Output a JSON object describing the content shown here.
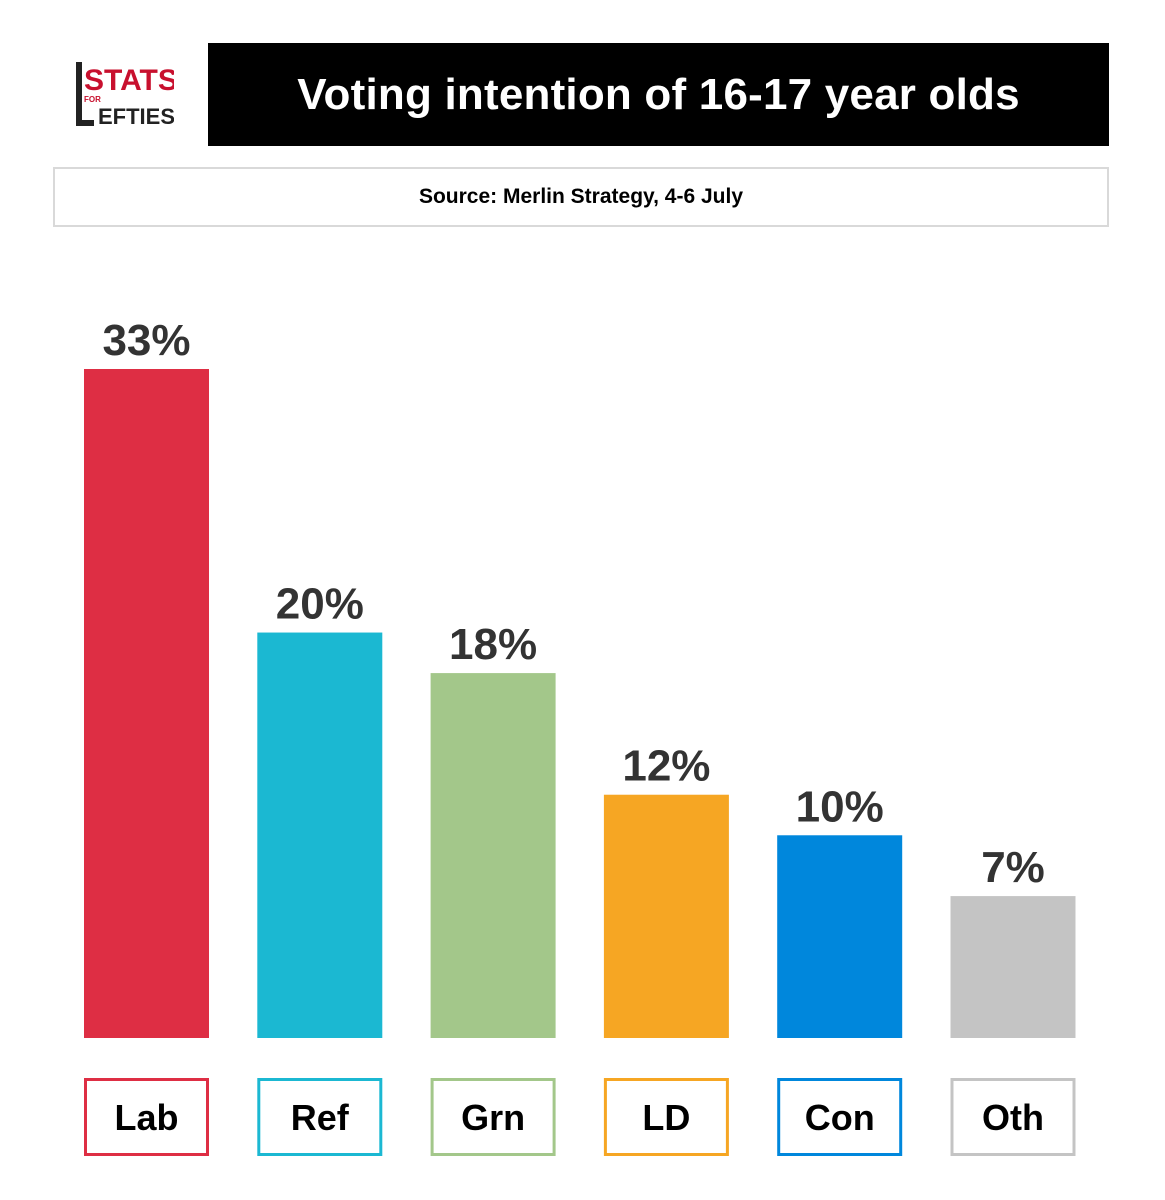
{
  "branding": {
    "logo_text_top": "STATS",
    "logo_text_for": "FOR",
    "logo_text_bottom": "EFTIES",
    "logo_letter": "L"
  },
  "header": {
    "title": "Voting intention of 16-17 year olds",
    "source": "Source: Merlin Strategy, 4-6 July"
  },
  "chart_data": {
    "type": "bar",
    "categories": [
      "Lab",
      "Ref",
      "Grn",
      "LD",
      "Con",
      "Oth"
    ],
    "values": [
      33,
      20,
      18,
      12,
      10,
      7
    ],
    "value_labels": [
      "33%",
      "20%",
      "18%",
      "12%",
      "10%",
      "7%"
    ],
    "colors": [
      "#de2e44",
      "#1bb8d2",
      "#a3c78a",
      "#f6a623",
      "#0087dc",
      "#c4c4c4"
    ],
    "ylim": [
      0,
      33
    ],
    "grid": false,
    "legend": "none"
  }
}
